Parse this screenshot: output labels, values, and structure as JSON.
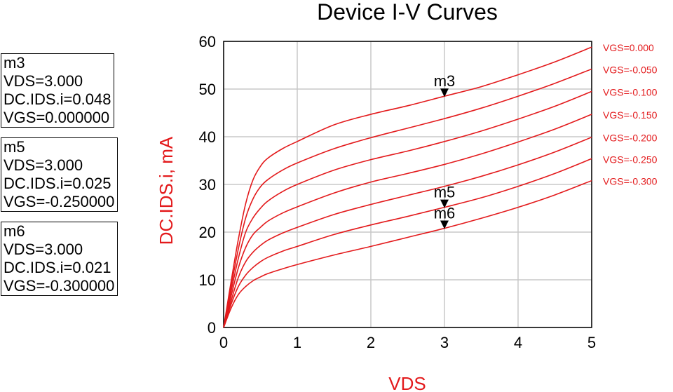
{
  "chart_data": {
    "type": "line",
    "title": "Device I-V Curves",
    "xlabel": "VDS",
    "ylabel": "DC.IDS.i, mA",
    "xlim": [
      0,
      5
    ],
    "ylim": [
      0,
      60
    ],
    "xticks": [
      0,
      1,
      2,
      3,
      4,
      5
    ],
    "yticks": [
      0,
      10,
      20,
      30,
      40,
      50,
      60
    ],
    "grid": true,
    "legend": "right",
    "line_color": "#e31a1c",
    "series": [
      {
        "name": "VGS=0.000",
        "x": [
          0,
          0.1,
          0.2,
          0.3,
          0.4,
          0.5,
          0.6,
          0.8,
          1.0,
          1.5,
          2.0,
          2.5,
          3.0,
          3.5,
          4.0,
          4.5,
          5.0
        ],
        "y": [
          0,
          9.5,
          18.5,
          26.0,
          31.0,
          33.8,
          35.5,
          37.5,
          39.0,
          42.5,
          44.7,
          46.5,
          48.5,
          50.5,
          53.0,
          55.7,
          58.8
        ]
      },
      {
        "name": "VGS=-0.050",
        "x": [
          0,
          0.1,
          0.2,
          0.3,
          0.4,
          0.5,
          0.6,
          0.8,
          1.0,
          1.5,
          2.0,
          2.5,
          3.0,
          3.5,
          4.0,
          4.5,
          5.0
        ],
        "y": [
          0,
          8.5,
          16.5,
          23.0,
          27.0,
          29.5,
          31.0,
          33.0,
          34.5,
          37.5,
          39.8,
          41.8,
          43.8,
          46.0,
          48.5,
          51.2,
          54.2
        ]
      },
      {
        "name": "VGS=-0.100",
        "x": [
          0,
          0.1,
          0.2,
          0.3,
          0.4,
          0.5,
          0.6,
          0.8,
          1.0,
          1.5,
          2.0,
          2.5,
          3.0,
          3.5,
          4.0,
          4.5,
          5.0
        ],
        "y": [
          0,
          7.5,
          14.5,
          20.0,
          23.0,
          25.0,
          26.5,
          28.5,
          30.0,
          33.0,
          35.2,
          37.0,
          39.0,
          41.2,
          43.7,
          46.4,
          49.5
        ]
      },
      {
        "name": "VGS=-0.150",
        "x": [
          0,
          0.1,
          0.2,
          0.3,
          0.4,
          0.5,
          0.6,
          0.8,
          1.0,
          1.5,
          2.0,
          2.5,
          3.0,
          3.5,
          4.0,
          4.5,
          5.0
        ],
        "y": [
          0,
          6.5,
          12.5,
          16.8,
          19.5,
          21.0,
          22.3,
          24.0,
          25.3,
          28.2,
          30.5,
          32.3,
          34.2,
          36.4,
          38.9,
          41.6,
          44.7
        ]
      },
      {
        "name": "VGS=-0.200",
        "x": [
          0,
          0.1,
          0.2,
          0.3,
          0.4,
          0.5,
          0.6,
          0.8,
          1.0,
          1.5,
          2.0,
          2.5,
          3.0,
          3.5,
          4.0,
          4.5,
          5.0
        ],
        "y": [
          0,
          5.5,
          10.5,
          13.8,
          15.8,
          17.2,
          18.3,
          19.8,
          21.0,
          23.7,
          25.8,
          27.7,
          29.6,
          31.7,
          34.1,
          36.8,
          39.9
        ]
      },
      {
        "name": "VGS=-0.250",
        "x": [
          0,
          0.1,
          0.2,
          0.3,
          0.4,
          0.5,
          0.6,
          0.8,
          1.0,
          1.5,
          2.0,
          2.5,
          3.0,
          3.5,
          4.0,
          4.5,
          5.0
        ],
        "y": [
          0,
          4.8,
          8.6,
          11.0,
          12.6,
          13.8,
          14.7,
          16.0,
          17.0,
          19.5,
          21.5,
          23.3,
          25.2,
          27.2,
          29.6,
          32.3,
          35.4
        ]
      },
      {
        "name": "VGS=-0.300",
        "x": [
          0,
          0.1,
          0.2,
          0.3,
          0.4,
          0.5,
          0.6,
          0.8,
          1.0,
          1.5,
          2.0,
          2.5,
          3.0,
          3.5,
          4.0,
          4.5,
          5.0
        ],
        "y": [
          0,
          4.0,
          6.9,
          8.6,
          9.8,
          10.6,
          11.3,
          12.3,
          13.2,
          15.2,
          17.0,
          18.9,
          20.8,
          22.9,
          25.2,
          27.8,
          30.8
        ]
      }
    ],
    "markers": [
      {
        "name": "m3",
        "x": 3.0,
        "y": 48.5,
        "label_pos": "above"
      },
      {
        "name": "m5",
        "x": 3.0,
        "y": 25.2,
        "label_pos": "above"
      },
      {
        "name": "m6",
        "x": 3.0,
        "y": 20.8,
        "label_pos": "above"
      }
    ]
  },
  "marker_boxes": [
    {
      "lines": [
        "m3",
        "VDS=3.000",
        "DC.IDS.i=0.048",
        "VGS=0.000000"
      ]
    },
    {
      "lines": [
        "m5",
        "VDS=3.000",
        "DC.IDS.i=0.025",
        "VGS=-0.250000"
      ]
    },
    {
      "lines": [
        "m6",
        "VDS=3.000",
        "DC.IDS.i=0.021",
        "VGS=-0.300000"
      ]
    }
  ]
}
